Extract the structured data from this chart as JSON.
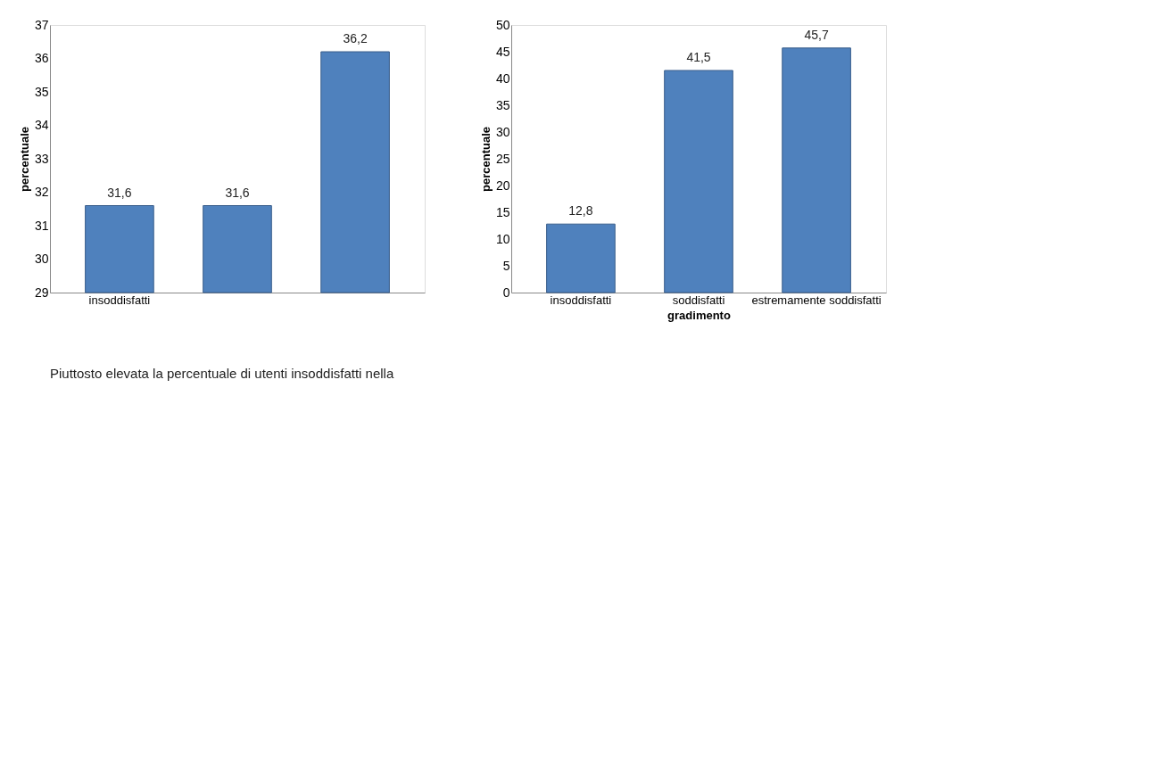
{
  "chart_data": [
    {
      "type": "bar",
      "categories": [
        "insoddisfatti",
        null,
        null
      ],
      "ylabel": "percentuale",
      "color": "#4f81bd",
      "values": [
        31.6,
        31.6,
        36.2
      ],
      "value_labels": [
        "31,6",
        "31,6",
        "36,2"
      ],
      "ylim": [
        29,
        37
      ],
      "yticks": [
        29,
        30,
        31,
        32,
        33,
        34,
        35,
        36,
        37
      ],
      "grid": false,
      "annotations": [
        "Piuttosto elevata la percentuale di utenti insoddisfatti nella"
      ]
    },
    {
      "type": "bar",
      "categories": [
        "insoddisfatti",
        "soddisfatti",
        "estremamente soddisfatti"
      ],
      "xlabel": "gradimento",
      "ylabel": "percentuale",
      "color": "#4f81bd",
      "values": [
        12.8,
        41.5,
        45.7
      ],
      "value_labels": [
        "12,8",
        "41,5",
        "45,7"
      ],
      "ylim": [
        0,
        50
      ],
      "yticks": [
        0,
        5,
        10,
        15,
        20,
        25,
        30,
        35,
        40,
        45,
        50
      ],
      "grid": false
    }
  ]
}
